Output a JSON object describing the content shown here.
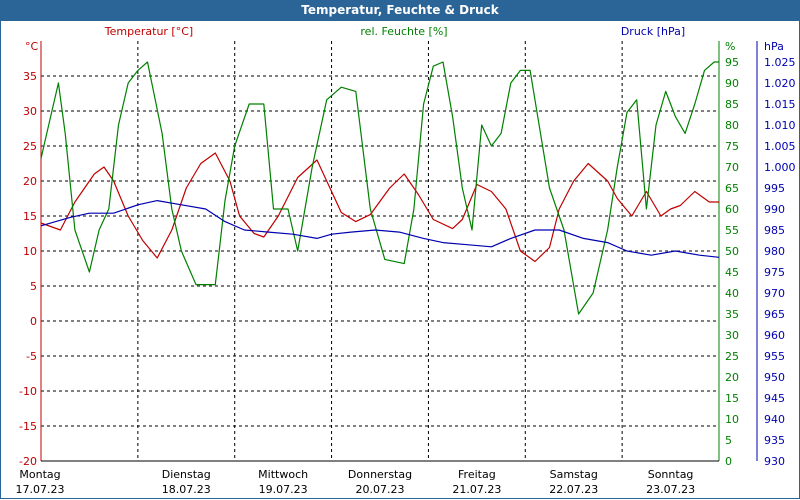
{
  "chart_data": {
    "type": "line",
    "title": "Temperatur, Feuchte & Druck",
    "days": [
      {
        "name": "Montag",
        "date": "17.07.23"
      },
      {
        "name": "Dienstag",
        "date": "18.07.23"
      },
      {
        "name": "Mittwoch",
        "date": "19.07.23"
      },
      {
        "name": "Donnerstag",
        "date": "20.07.23"
      },
      {
        "name": "Freitag",
        "date": "21.07.23"
      },
      {
        "name": "Samstag",
        "date": "22.07.23"
      },
      {
        "name": "Sonntag",
        "date": "23.07.23"
      }
    ],
    "x_range_days": [
      0,
      7
    ],
    "axes": {
      "temperature": {
        "label": "Temperatur [°C]",
        "unit": "°C",
        "range": [
          -20,
          40
        ],
        "ticks": [
          -20,
          -15,
          -10,
          -5,
          0,
          5,
          10,
          15,
          20,
          25,
          30,
          35
        ]
      },
      "humidity": {
        "label": "rel. Feuchte [%]",
        "unit": "%",
        "range": [
          0,
          100
        ],
        "ticks": [
          0,
          5,
          10,
          15,
          20,
          25,
          30,
          35,
          40,
          45,
          50,
          55,
          60,
          65,
          70,
          75,
          80,
          85,
          90,
          95
        ]
      },
      "pressure": {
        "label": "Druck [hPa]",
        "unit": "hPa",
        "range": [
          930,
          1030
        ],
        "ticks": [
          "930",
          "935",
          "940",
          "945",
          "950",
          "955",
          "960",
          "965",
          "970",
          "975",
          "980",
          "985",
          "990",
          "995",
          "1.000",
          "1.005",
          "1.010",
          "1.015",
          "1.020",
          "1.025"
        ]
      }
    },
    "series": [
      {
        "name": "Temperatur",
        "axis": "temperature",
        "color": "#C00000",
        "x": [
          0,
          0.1,
          0.2,
          0.35,
          0.55,
          0.65,
          0.75,
          0.9,
          1.05,
          1.2,
          1.35,
          1.5,
          1.65,
          1.8,
          1.95,
          2.05,
          2.2,
          2.3,
          2.45,
          2.65,
          2.85,
          2.95,
          3.1,
          3.25,
          3.4,
          3.6,
          3.75,
          3.9,
          4.05,
          4.25,
          4.35,
          4.5,
          4.65,
          4.8,
          4.95,
          5.1,
          5.25,
          5.35,
          5.5,
          5.65,
          5.85,
          5.95,
          6.1,
          6.25,
          6.4,
          6.5,
          6.6,
          6.75,
          6.9,
          7.0
        ],
        "values": [
          14,
          13.5,
          13,
          17,
          21,
          22,
          20,
          15,
          11.5,
          9,
          13,
          19,
          22.5,
          24,
          20,
          15,
          12.5,
          12,
          15,
          20.5,
          23,
          20,
          15.5,
          14.2,
          15.2,
          19,
          21,
          18,
          14.5,
          13.2,
          14.5,
          19.5,
          18.5,
          16,
          10,
          8.5,
          10.5,
          16,
          20,
          22.5,
          20,
          17.5,
          15,
          18.5,
          15,
          16,
          16.5,
          18.5,
          17,
          17
        ]
      },
      {
        "name": "rel. Feuchte",
        "axis": "humidity",
        "color": "#008000",
        "x": [
          0,
          0.08,
          0.18,
          0.25,
          0.35,
          0.5,
          0.6,
          0.7,
          0.8,
          0.9,
          1.0,
          1.1,
          1.25,
          1.35,
          1.45,
          1.6,
          1.8,
          1.9,
          2.0,
          2.15,
          2.3,
          2.4,
          2.55,
          2.65,
          2.8,
          2.95,
          3.1,
          3.25,
          3.4,
          3.55,
          3.75,
          3.85,
          3.95,
          4.05,
          4.15,
          4.25,
          4.35,
          4.45,
          4.55,
          4.65,
          4.75,
          4.85,
          4.95,
          5.05,
          5.25,
          5.4,
          5.55,
          5.7,
          5.85,
          5.95,
          6.05,
          6.15,
          6.25,
          6.35,
          6.45,
          6.55,
          6.65,
          6.75,
          6.85,
          6.95,
          7.0
        ],
        "values": [
          72,
          80,
          90,
          78,
          55,
          45,
          55,
          60,
          80,
          90,
          93,
          95,
          78,
          60,
          50,
          42,
          42,
          62,
          75,
          85,
          85,
          60,
          60,
          50,
          70,
          86,
          89,
          88,
          60,
          48,
          47,
          60,
          85,
          94,
          95,
          82,
          65,
          55,
          80,
          75,
          78,
          90,
          93,
          93,
          65,
          55,
          35,
          40,
          55,
          70,
          83,
          86,
          60,
          80,
          88,
          82,
          78,
          85,
          93,
          95,
          95
        ]
      },
      {
        "name": "Druck",
        "axis": "pressure",
        "color": "#0000B0",
        "x": [
          0,
          0.3,
          0.5,
          0.75,
          1.0,
          1.2,
          1.45,
          1.7,
          1.9,
          2.1,
          2.35,
          2.6,
          2.85,
          3.0,
          3.2,
          3.45,
          3.7,
          3.95,
          4.15,
          4.4,
          4.65,
          4.85,
          5.1,
          5.35,
          5.6,
          5.85,
          6.05,
          6.3,
          6.55,
          6.8,
          7.0
        ],
        "values": [
          986,
          988,
          989,
          989,
          991,
          992,
          991,
          990,
          987,
          985,
          984.5,
          984,
          983,
          984,
          984.5,
          985,
          984.5,
          983,
          982,
          981.5,
          981,
          983,
          985,
          985,
          983,
          982,
          980,
          979,
          980,
          979,
          978.5
        ]
      }
    ]
  }
}
